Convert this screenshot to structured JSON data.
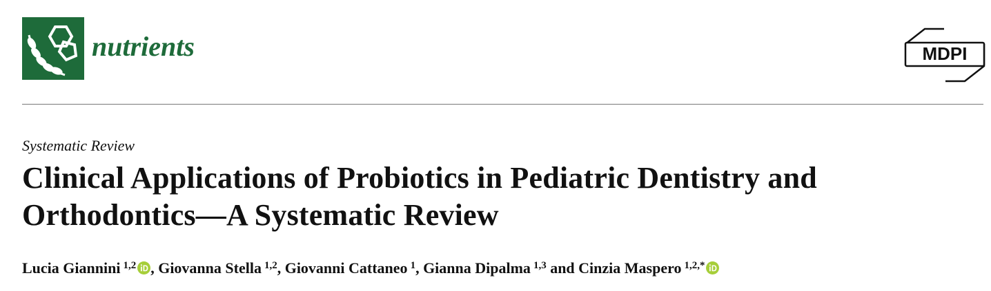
{
  "journal": "nutrients",
  "publisher": "MDPI",
  "article_type": "Systematic Review",
  "title_lines": [
    "Clinical Applications of Probiotics in Pediatric Dentistry and",
    "Orthodontics—A Systematic Review"
  ],
  "authors": [
    {
      "name": "Lucia Giannini",
      "affiliations": "1,2",
      "orcid": true
    },
    {
      "separator": ", ",
      "name": "Giovanna Stella",
      "affiliations": "1,2",
      "orcid": false
    },
    {
      "separator": ", ",
      "name": "Giovanni Cattaneo",
      "affiliations": "1",
      "orcid": false
    },
    {
      "separator": ", ",
      "name": "Gianna Dipalma",
      "affiliations": "1,3",
      "orcid": false
    },
    {
      "separator": " and ",
      "name": "Cinzia Maspero",
      "affiliations": "1,2,*",
      "orcid": true
    }
  ]
}
